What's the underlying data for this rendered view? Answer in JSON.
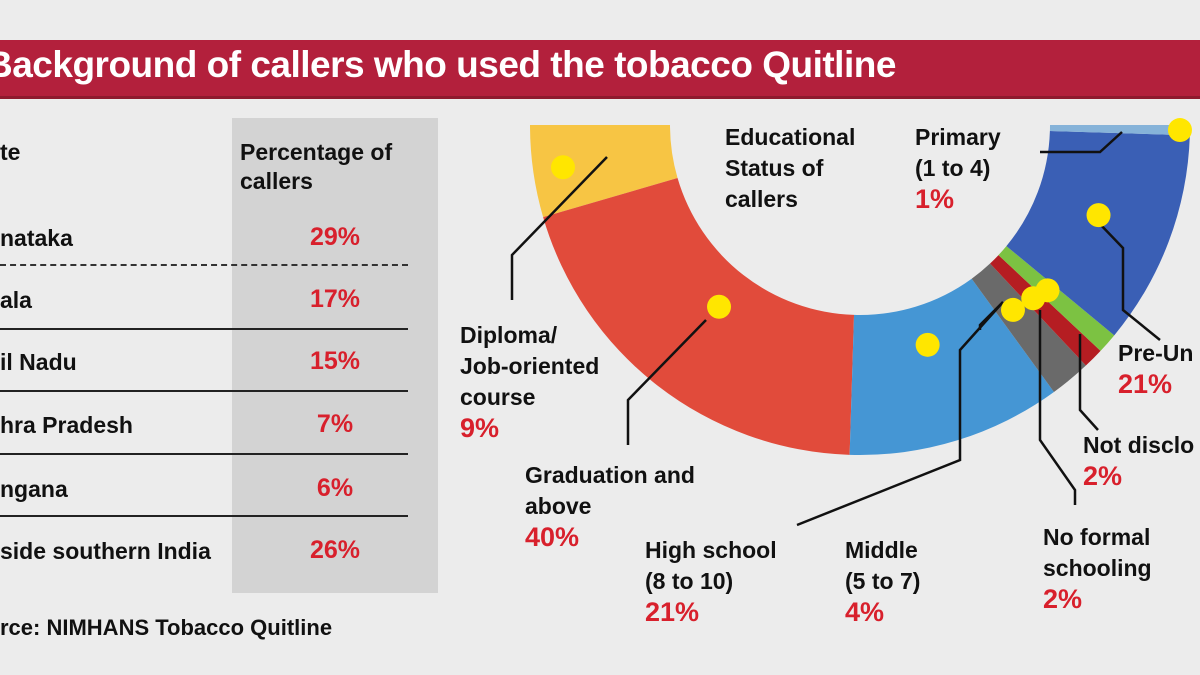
{
  "title": "Background of callers who used the tobacco Quitline",
  "table": {
    "headers": [
      "te",
      "Percentage of callers"
    ],
    "rows": [
      {
        "state": "nataka",
        "value": "29%"
      },
      {
        "state": "ala",
        "value": "17%"
      },
      {
        "state": "il Nadu",
        "value": "15%"
      },
      {
        "state": "hra Pradesh",
        "value": "7%"
      },
      {
        "state": "ngana",
        "value": "6%"
      },
      {
        "state": "side southern India",
        "value": "26%"
      }
    ],
    "source": "rce: NIMHANS Tobacco Quitline"
  },
  "chart_data": {
    "type": "pie",
    "title": "Educational Status of callers",
    "shape": "half-donut",
    "slices": [
      {
        "label": "Diploma/ Job-oriented course",
        "value": 9,
        "text": "9%",
        "color": "#f7c544"
      },
      {
        "label": "Graduation and above",
        "value": 40,
        "text": "40%",
        "color": "#e14b3b"
      },
      {
        "label": "High school (8 to 10)",
        "value": 21,
        "text": "21%",
        "color": "#4596d4"
      },
      {
        "label": "Middle (5 to 7)",
        "value": 4,
        "text": "4%",
        "color": "#6a6a6a"
      },
      {
        "label": "No formal schooling",
        "value": 2,
        "text": "2%",
        "color": "#b51d22"
      },
      {
        "label": "Not disclo",
        "value": 2,
        "text": "2%",
        "color": "#7cc242"
      },
      {
        "label": "Pre-Un",
        "value": 21,
        "text": "21%",
        "color": "#3a5fb5"
      },
      {
        "label": "Primary (1 to 4)",
        "value": 1,
        "text": "1%",
        "color": "#86b3d9"
      }
    ]
  },
  "labels": {
    "title_lines": [
      "Educational",
      "Status of",
      "callers"
    ],
    "primary": [
      "Primary",
      "(1 to 4)"
    ],
    "diploma": [
      "Diploma/",
      "Job-oriented",
      "course"
    ],
    "graduation": [
      "Graduation and",
      "above"
    ],
    "high_school": [
      "High school",
      "(8 to 10)"
    ],
    "middle": [
      "Middle",
      "(5 to 7)"
    ],
    "no_formal": [
      "No formal",
      "schooling"
    ],
    "not_disclosed": [
      "Not disclo"
    ],
    "pre_univ": [
      "Pre-Un"
    ]
  }
}
